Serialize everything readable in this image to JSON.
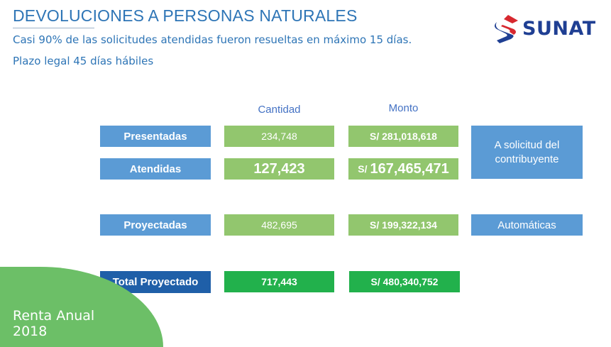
{
  "header": {
    "title": "DEVOLUCIONES A PERSONAS NATURALES",
    "subtitle1": "Casi 90% de las solicitudes atendidas fueron  resueltas en máximo 15 días.",
    "subtitle2": "Plazo legal 45 días hábiles"
  },
  "logo": {
    "text": "SUNAT",
    "colors": {
      "red": "#d7282f",
      "blue": "#1f3f93"
    }
  },
  "columns": {
    "cantidad": "Cantidad",
    "monto": "Monto"
  },
  "rows": [
    {
      "label": "Presentadas",
      "cantidad": "234,748",
      "monto": "S/ 281,018,618"
    },
    {
      "label": "Atendidas",
      "cantidad": "127,423",
      "monto_prefix": "S/",
      "monto": "167,465,471"
    },
    {
      "label": "Proyectadas",
      "cantidad": "482,695",
      "monto": "S/ 199,322,134"
    },
    {
      "label": "Total Proyectado",
      "cantidad": "717,443",
      "monto": "S/ 480,340,752"
    }
  ],
  "side_labels": {
    "solicitud": "A solicitud del contribuyente",
    "automaticas": "Automáticas"
  },
  "footer": {
    "line1": "Renta Anual",
    "line2": "2018"
  },
  "colors": {
    "title": "#2e75b6",
    "label_blue": "#5b9bd5",
    "total_blue": "#1f5fa8",
    "light_green": "#92c66e",
    "dark_green": "#22b14c",
    "corner_green": "#6cbf67"
  }
}
